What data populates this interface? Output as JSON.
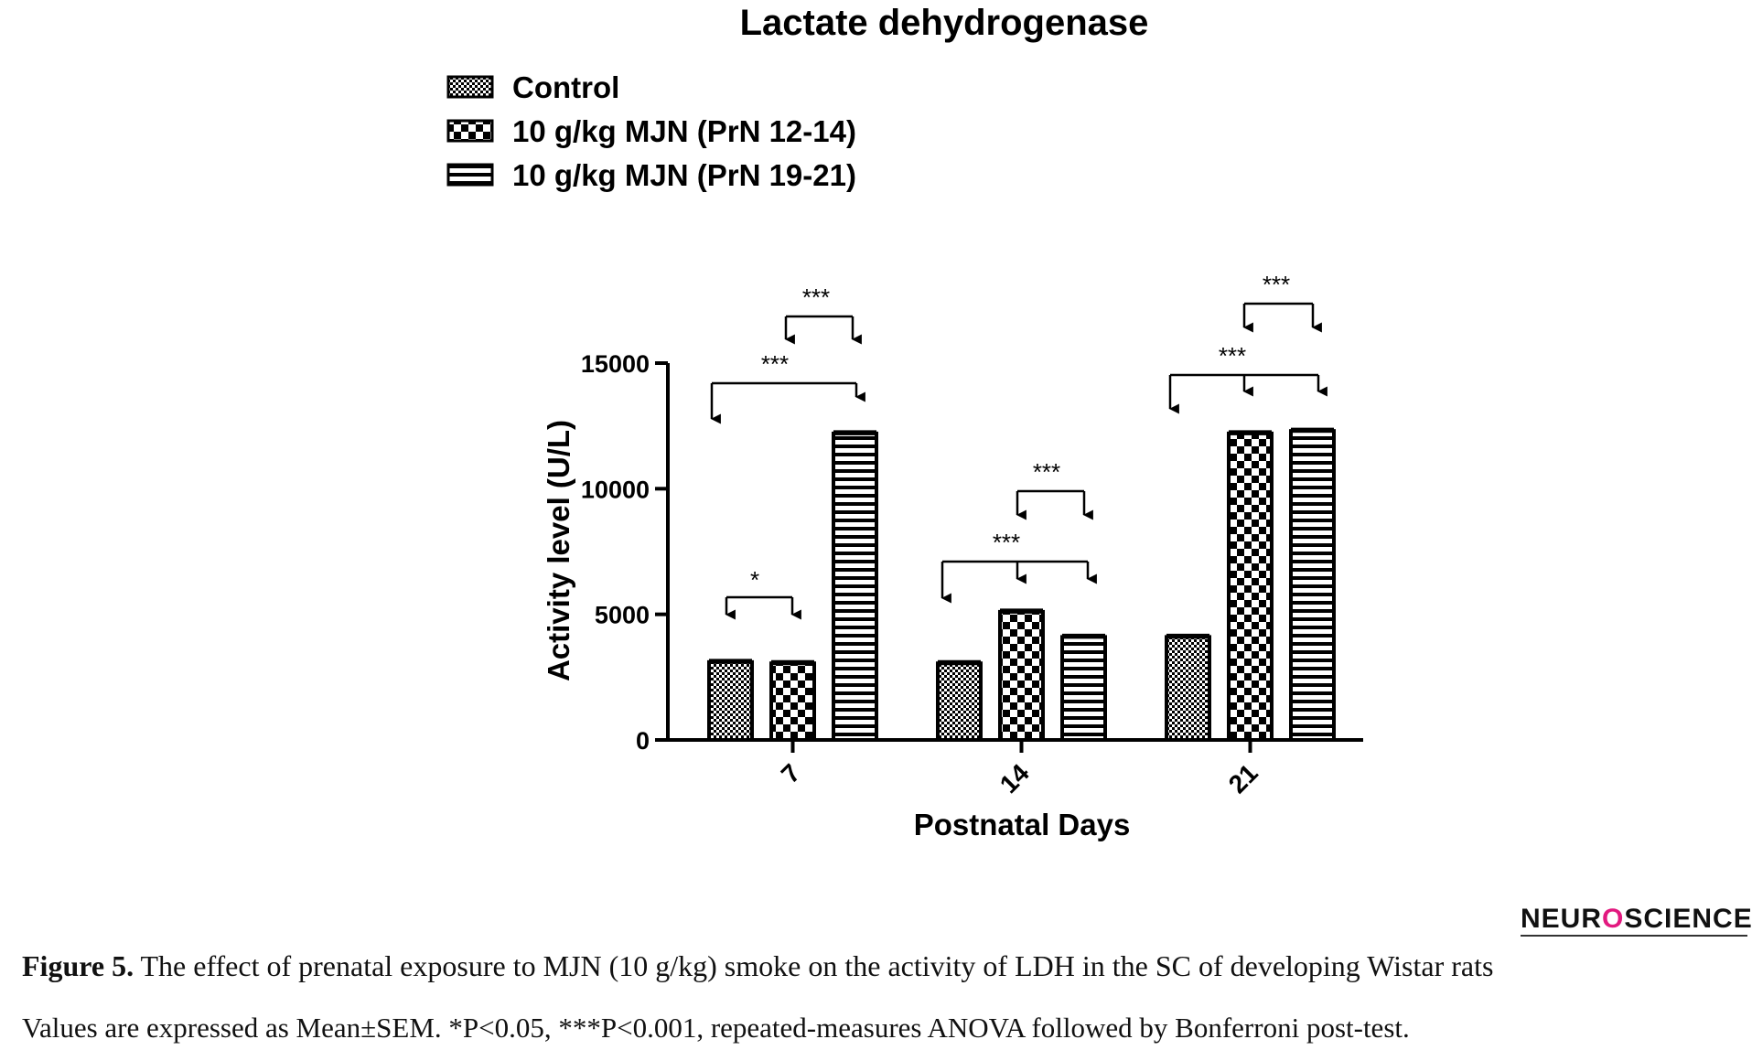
{
  "chart_data": {
    "type": "bar",
    "title": "Lactate dehydrogenase",
    "xlabel": "Postnatal Days",
    "ylabel": "Activity level (U/L)",
    "categories": [
      "7",
      "14",
      "21"
    ],
    "ylim": [
      0,
      15000
    ],
    "yticks": [
      0,
      5000,
      10000,
      15000
    ],
    "legend_position": "top-left",
    "series": [
      {
        "name": "Control",
        "pattern": "fine-checker",
        "values": [
          3100,
          3050,
          4100
        ]
      },
      {
        "name": "10 g/kg MJN (PrN 12-14)",
        "pattern": "coarse-checker",
        "values": [
          3050,
          5100,
          12200
        ]
      },
      {
        "name": "10 g/kg MJN (PrN 19-21)",
        "pattern": "horizontal-stripes",
        "values": [
          12200,
          4100,
          12300
        ]
      }
    ],
    "significance": [
      {
        "category": "7",
        "compare": [
          "Control",
          "10 g/kg MJN (PrN 12-14)"
        ],
        "label": "*"
      },
      {
        "category": "7",
        "compare": [
          "Control",
          "10 g/kg MJN (PrN 19-21)"
        ],
        "label": "***"
      },
      {
        "category": "7",
        "compare": [
          "10 g/kg MJN (PrN 12-14)",
          "10 g/kg MJN (PrN 19-21)"
        ],
        "label": "***"
      },
      {
        "category": "14",
        "compare": [
          "Control",
          "10 g/kg MJN (PrN 12-14)",
          "10 g/kg MJN (PrN 19-21)"
        ],
        "label": "***"
      },
      {
        "category": "14",
        "compare": [
          "10 g/kg MJN (PrN 12-14)",
          "10 g/kg MJN (PrN 19-21)"
        ],
        "label": "***"
      },
      {
        "category": "21",
        "compare": [
          "Control",
          "10 g/kg MJN (PrN 12-14)",
          "10 g/kg MJN (PrN 19-21)"
        ],
        "label": "***"
      },
      {
        "category": "21",
        "compare": [
          "10 g/kg MJN (PrN 12-14)",
          "10 g/kg MJN (PrN 19-21)"
        ],
        "label": "***"
      }
    ],
    "colors": {
      "ink": "#000000"
    }
  },
  "caption": {
    "label": "Figure 5.",
    "text": " The effect of prenatal exposure to MJN (10 g/kg) smoke on the activity of LDH in the SC of developing Wistar rats",
    "note": "Values are expressed as Mean±SEM. *P<0.05, ***P<0.001, repeated-measures ANOVA followed by Bonferroni post-test."
  },
  "brand": {
    "text_before": "NEUR",
    "text_o": "O",
    "text_after": "SCIENCE",
    "accent_color": "#e2197f"
  }
}
